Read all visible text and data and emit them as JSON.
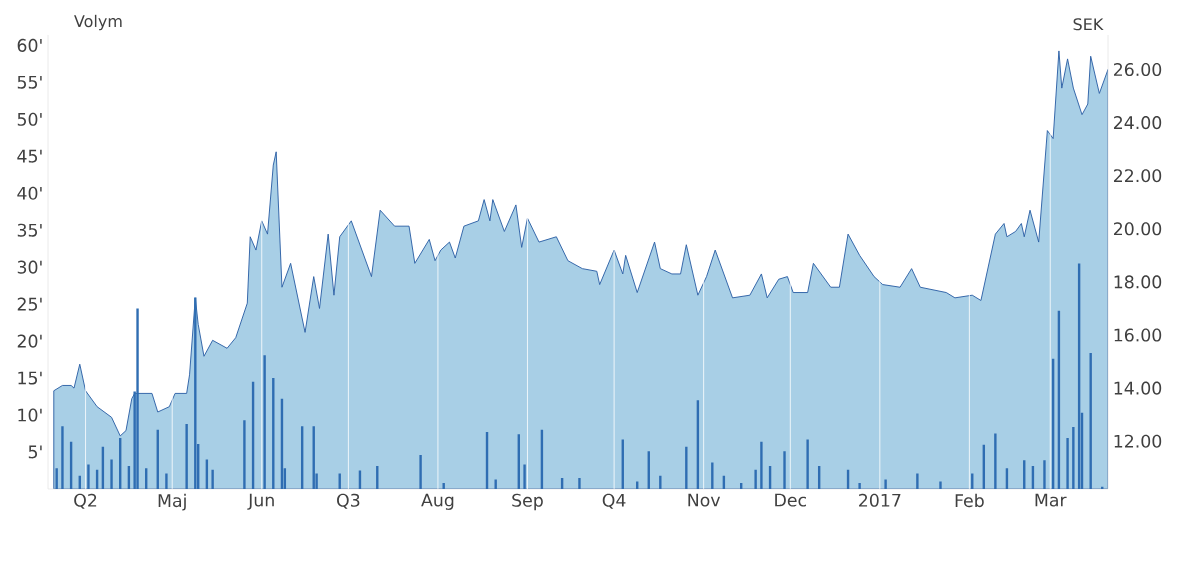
{
  "chart_data": {
    "type": "bar",
    "ylabel": "Volym",
    "y2label": "SEK",
    "xlim": [
      "2016-03-19",
      "2017-03-21"
    ],
    "xticks": [
      {
        "value": "2016-04-01",
        "label": "Q2"
      },
      {
        "value": "2016-05-01",
        "label": "Maj"
      },
      {
        "value": "2016-06-01",
        "label": "Jun"
      },
      {
        "value": "2016-07-01",
        "label": "Q3"
      },
      {
        "value": "2016-08-01",
        "label": "Aug"
      },
      {
        "value": "2016-09-01",
        "label": "Sep"
      },
      {
        "value": "2016-10-01",
        "label": "Q4"
      },
      {
        "value": "2016-11-01",
        "label": "Nov"
      },
      {
        "value": "2016-12-01",
        "label": "Dec"
      },
      {
        "value": "2017-01-01",
        "label": "2017"
      },
      {
        "value": "2017-02-01",
        "label": "Feb"
      },
      {
        "value": "2017-03-01",
        "label": "Mar"
      }
    ],
    "ylim": [
      0,
      61.4
    ],
    "yticks": [
      {
        "value": 5,
        "label": "5'"
      },
      {
        "value": 10,
        "label": "10'"
      },
      {
        "value": 15,
        "label": "15'"
      },
      {
        "value": 20,
        "label": "20'"
      },
      {
        "value": 25,
        "label": "25'"
      },
      {
        "value": 30,
        "label": "30'"
      },
      {
        "value": 35,
        "label": "35'"
      },
      {
        "value": 40,
        "label": "40'"
      },
      {
        "value": 45,
        "label": "45'"
      },
      {
        "value": 50,
        "label": "50'"
      },
      {
        "value": 55,
        "label": "55'"
      },
      {
        "value": 60,
        "label": "60'"
      }
    ],
    "y2lim": [
      10.2,
      27.3
    ],
    "y2ticks": [
      {
        "value": 12,
        "label": "12.00"
      },
      {
        "value": 14,
        "label": "14.00"
      },
      {
        "value": 16,
        "label": "16.00"
      },
      {
        "value": 18,
        "label": "18.00"
      },
      {
        "value": 20,
        "label": "20.00"
      },
      {
        "value": 22,
        "label": "22.00"
      },
      {
        "value": 24,
        "label": "24.00"
      },
      {
        "value": 26,
        "label": "26.00"
      }
    ],
    "grid": "x",
    "series": [
      {
        "type": "area",
        "axis": "y2",
        "color": "#a8cfe6",
        "x": [
          "2016-03-21",
          "2016-03-24",
          "2016-03-27",
          "2016-03-28",
          "2016-03-30",
          "2016-04-01",
          "2016-04-05",
          "2016-04-10",
          "2016-04-13",
          "2016-04-15",
          "2016-04-17",
          "2016-04-18",
          "2016-04-22",
          "2016-04-24",
          "2016-04-26",
          "2016-04-30",
          "2016-05-02",
          "2016-05-06",
          "2016-05-07",
          "2016-05-09",
          "2016-05-10",
          "2016-05-12",
          "2016-05-15",
          "2016-05-20",
          "2016-05-23",
          "2016-05-27",
          "2016-05-28",
          "2016-05-30",
          "2016-06-01",
          "2016-06-03",
          "2016-06-05",
          "2016-06-06",
          "2016-06-08",
          "2016-06-11",
          "2016-06-16",
          "2016-06-19",
          "2016-06-21",
          "2016-06-24",
          "2016-06-26",
          "2016-06-28",
          "2016-07-02",
          "2016-07-09",
          "2016-07-12",
          "2016-07-17",
          "2016-07-22",
          "2016-07-24",
          "2016-07-29",
          "2016-07-31",
          "2016-08-02",
          "2016-08-05",
          "2016-08-07",
          "2016-08-10",
          "2016-08-15",
          "2016-08-17",
          "2016-08-19",
          "2016-08-20",
          "2016-08-24",
          "2016-08-28",
          "2016-08-30",
          "2016-09-01",
          "2016-09-05",
          "2016-09-11",
          "2016-09-15",
          "2016-09-20",
          "2016-09-25",
          "2016-09-26",
          "2016-10-01",
          "2016-10-04",
          "2016-10-05",
          "2016-10-09",
          "2016-10-15",
          "2016-10-17",
          "2016-10-21",
          "2016-10-24",
          "2016-10-26",
          "2016-10-30",
          "2016-11-02",
          "2016-11-05",
          "2016-11-11",
          "2016-11-17",
          "2016-11-21",
          "2016-11-23",
          "2016-11-27",
          "2016-11-30",
          "2016-12-02",
          "2016-12-07",
          "2016-12-09",
          "2016-12-15",
          "2016-12-18",
          "2016-12-21",
          "2016-12-25",
          "2016-12-30",
          "2017-01-02",
          "2017-01-08",
          "2017-01-12",
          "2017-01-15",
          "2017-01-24",
          "2017-01-27",
          "2017-02-02",
          "2017-02-05",
          "2017-02-10",
          "2017-02-13",
          "2017-02-14",
          "2017-02-17",
          "2017-02-19",
          "2017-02-20",
          "2017-02-22",
          "2017-02-25",
          "2017-02-28",
          "2017-03-02",
          "2017-03-04",
          "2017-03-05",
          "2017-03-07",
          "2017-03-09",
          "2017-03-12",
          "2017-03-14",
          "2017-03-15",
          "2017-03-18",
          "2017-03-21"
        ],
        "values": [
          13.9,
          14.1,
          14.1,
          14.0,
          14.9,
          13.9,
          13.3,
          12.9,
          12.2,
          12.4,
          13.6,
          13.8,
          13.8,
          13.8,
          13.1,
          13.3,
          13.8,
          13.8,
          14.5,
          17.4,
          16.4,
          15.2,
          15.8,
          15.5,
          15.9,
          17.2,
          19.7,
          19.2,
          20.3,
          19.8,
          22.4,
          22.9,
          17.8,
          18.7,
          16.1,
          18.2,
          17.0,
          19.8,
          17.5,
          19.7,
          20.3,
          18.2,
          20.7,
          20.1,
          20.1,
          18.7,
          19.6,
          18.8,
          19.2,
          19.5,
          18.9,
          20.1,
          20.3,
          21.1,
          20.3,
          21.1,
          19.9,
          20.9,
          19.3,
          20.4,
          19.5,
          19.7,
          18.8,
          18.5,
          18.4,
          17.9,
          19.2,
          18.3,
          19.0,
          17.6,
          19.5,
          18.5,
          18.3,
          18.3,
          19.4,
          17.5,
          18.2,
          19.2,
          17.4,
          17.5,
          18.3,
          17.4,
          18.1,
          18.2,
          17.6,
          17.6,
          18.7,
          17.8,
          17.8,
          19.8,
          19.0,
          18.2,
          17.9,
          17.8,
          18.5,
          17.8,
          17.6,
          17.4,
          17.5,
          17.3,
          19.8,
          20.2,
          19.7,
          19.9,
          20.2,
          19.7,
          20.7,
          19.5,
          23.7,
          23.4,
          26.7,
          25.3,
          26.4,
          25.3,
          24.3,
          24.7,
          26.5,
          25.1,
          26.0
        ]
      },
      {
        "color": "#2f6db2",
        "x": [
          "2016-03-22",
          "2016-03-24",
          "2016-03-27",
          "2016-03-30",
          "2016-04-02",
          "2016-04-05",
          "2016-04-07",
          "2016-04-10",
          "2016-04-13",
          "2016-04-16",
          "2016-04-18",
          "2016-04-19",
          "2016-04-22",
          "2016-04-26",
          "2016-04-29",
          "2016-05-06",
          "2016-05-09",
          "2016-05-10",
          "2016-05-13",
          "2016-05-15",
          "2016-05-26",
          "2016-05-29",
          "2016-06-02",
          "2016-06-05",
          "2016-06-08",
          "2016-06-09",
          "2016-06-15",
          "2016-06-19",
          "2016-06-20",
          "2016-06-28",
          "2016-07-05",
          "2016-07-11",
          "2016-07-26",
          "2016-08-03",
          "2016-08-18",
          "2016-08-21",
          "2016-08-29",
          "2016-08-31",
          "2016-09-06",
          "2016-09-13",
          "2016-09-19",
          "2016-10-04",
          "2016-10-09",
          "2016-10-13",
          "2016-10-17",
          "2016-10-26",
          "2016-10-30",
          "2016-11-04",
          "2016-11-08",
          "2016-11-14",
          "2016-11-19",
          "2016-11-21",
          "2016-11-24",
          "2016-11-29",
          "2016-12-07",
          "2016-12-11",
          "2016-12-21",
          "2016-12-25",
          "2017-01-03",
          "2017-01-14",
          "2017-01-22",
          "2017-02-02",
          "2017-02-06",
          "2017-02-10",
          "2017-02-14",
          "2017-02-20",
          "2017-02-23",
          "2017-02-27",
          "2017-03-02",
          "2017-03-04",
          "2017-03-07",
          "2017-03-09",
          "2017-03-11",
          "2017-03-12",
          "2017-03-15",
          "2017-03-19"
        ],
        "values": [
          2.8,
          8.5,
          6.4,
          1.8,
          3.3,
          2.6,
          5.7,
          4.0,
          6.9,
          3.1,
          13.2,
          24.4,
          2.8,
          8.0,
          2.1,
          8.8,
          25.9,
          6.1,
          4.0,
          2.6,
          9.3,
          14.5,
          18.1,
          15.0,
          12.2,
          2.8,
          8.5,
          8.5,
          2.1,
          2.1,
          2.5,
          3.1,
          4.6,
          0.8,
          7.7,
          1.3,
          7.4,
          3.3,
          8.0,
          1.5,
          1.5,
          6.7,
          1.0,
          5.1,
          1.8,
          5.7,
          12.0,
          3.6,
          1.8,
          0.8,
          2.6,
          6.4,
          3.1,
          5.1,
          6.7,
          3.1,
          2.6,
          0.8,
          1.3,
          2.1,
          1.0,
          2.1,
          6.0,
          7.5,
          2.8,
          3.9,
          3.1,
          3.9,
          17.6,
          24.1,
          6.9,
          8.4,
          30.5,
          10.3,
          18.4,
          0.3
        ]
      }
    ]
  }
}
